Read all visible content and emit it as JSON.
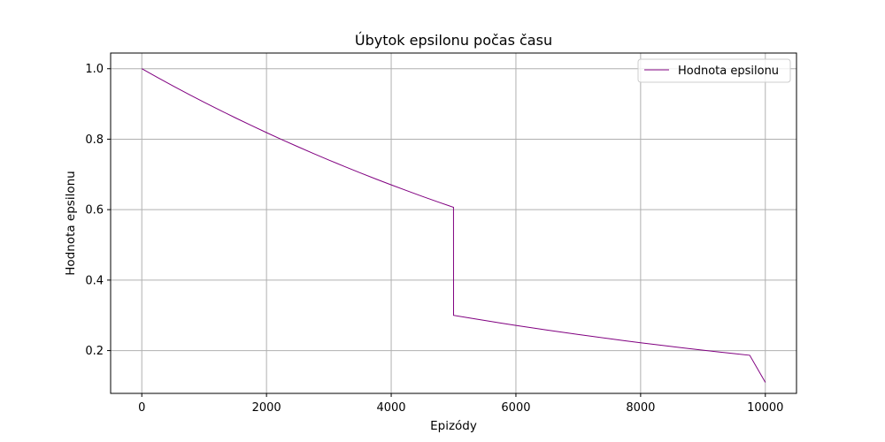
{
  "chart_data": {
    "type": "line",
    "title": "Úbytok epsilonu počas času",
    "xlabel": "Epizódy",
    "ylabel": "Hodnota epsilonu",
    "xlim": [
      -500,
      10500
    ],
    "ylim": [
      0.0785,
      1.0445
    ],
    "x_ticks": [
      0,
      2000,
      4000,
      6000,
      8000,
      10000
    ],
    "x_tick_labels": [
      "0",
      "2000",
      "4000",
      "6000",
      "8000",
      "10000"
    ],
    "y_ticks": [
      0.2,
      0.4,
      0.6,
      0.8,
      1.0
    ],
    "y_tick_labels": [
      "0.2",
      "0.4",
      "0.6",
      "0.8",
      "1.0"
    ],
    "grid": true,
    "legend_position": "top-right",
    "colors": {
      "series": "#800080",
      "grid": "#b0b0b0"
    },
    "series": [
      {
        "name": "Hodnota epsilonu",
        "x": [
          0,
          250,
          500,
          750,
          1000,
          1250,
          1500,
          1750,
          2000,
          2250,
          2500,
          2750,
          3000,
          3250,
          3500,
          3750,
          4000,
          4250,
          4500,
          4750,
          4999,
          5000,
          5250,
          5500,
          5750,
          6000,
          6250,
          6500,
          6750,
          7000,
          7250,
          7500,
          7750,
          8000,
          8250,
          8500,
          8750,
          9000,
          9250,
          9500,
          9750,
          10000
        ],
        "values": [
          1.0,
          0.9753,
          0.9512,
          0.9277,
          0.9048,
          0.8825,
          0.8607,
          0.8395,
          0.8187,
          0.7985,
          0.7788,
          0.7596,
          0.7408,
          0.7225,
          0.7047,
          0.6873,
          0.6703,
          0.6538,
          0.6376,
          0.6219,
          0.6066,
          0.3,
          0.2926,
          0.2854,
          0.2783,
          0.2715,
          0.2648,
          0.2582,
          0.2519,
          0.2456,
          0.2396,
          0.2336,
          0.2279,
          0.2222,
          0.2168,
          0.2114,
          0.2062,
          0.2011,
          0.1962,
          0.1913,
          0.1866,
          0.11
        ]
      }
    ]
  }
}
